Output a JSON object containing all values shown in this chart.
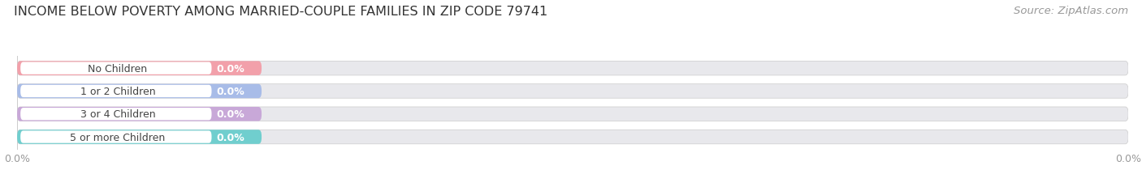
{
  "title": "INCOME BELOW POVERTY AMONG MARRIED-COUPLE FAMILIES IN ZIP CODE 79741",
  "source": "Source: ZipAtlas.com",
  "categories": [
    "No Children",
    "1 or 2 Children",
    "3 or 4 Children",
    "5 or more Children"
  ],
  "values": [
    0.0,
    0.0,
    0.0,
    0.0
  ],
  "bar_colors": [
    "#f2a0aa",
    "#a8bce8",
    "#c8a8d8",
    "#70cece"
  ],
  "bar_bg_color": "#e8e8ec",
  "background_color": "#ffffff",
  "title_fontsize": 11.5,
  "source_fontsize": 9.5,
  "tick_label_fontsize": 9,
  "bar_label_fontsize": 9,
  "category_fontsize": 9
}
